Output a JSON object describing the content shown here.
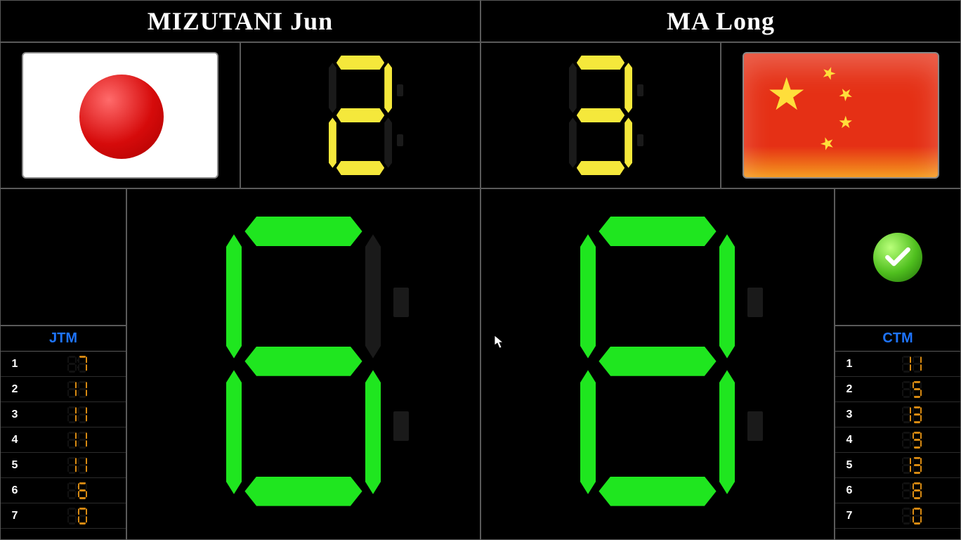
{
  "colors": {
    "background": "#000000",
    "border": "#5a5a5a",
    "set_digit": "#f5e83b",
    "point_digit": "#1fe61f",
    "hist_digit": "#d88a12",
    "hist_title": "#1e74ff",
    "name_text": "#ffffff"
  },
  "player_left": {
    "name": "MIZUTANI  Jun",
    "country": "JPN",
    "flag": "japan",
    "sets": 2,
    "points": 6,
    "serve": false,
    "history_title": "JTM",
    "history": [
      7,
      11,
      11,
      11,
      11,
      6,
      0
    ]
  },
  "player_right": {
    "name": "MA  Long",
    "country": "CHN",
    "flag": "china",
    "sets": 3,
    "points": 8,
    "serve": true,
    "history_title": "CTM",
    "history": [
      11,
      5,
      13,
      9,
      13,
      8,
      0
    ]
  }
}
